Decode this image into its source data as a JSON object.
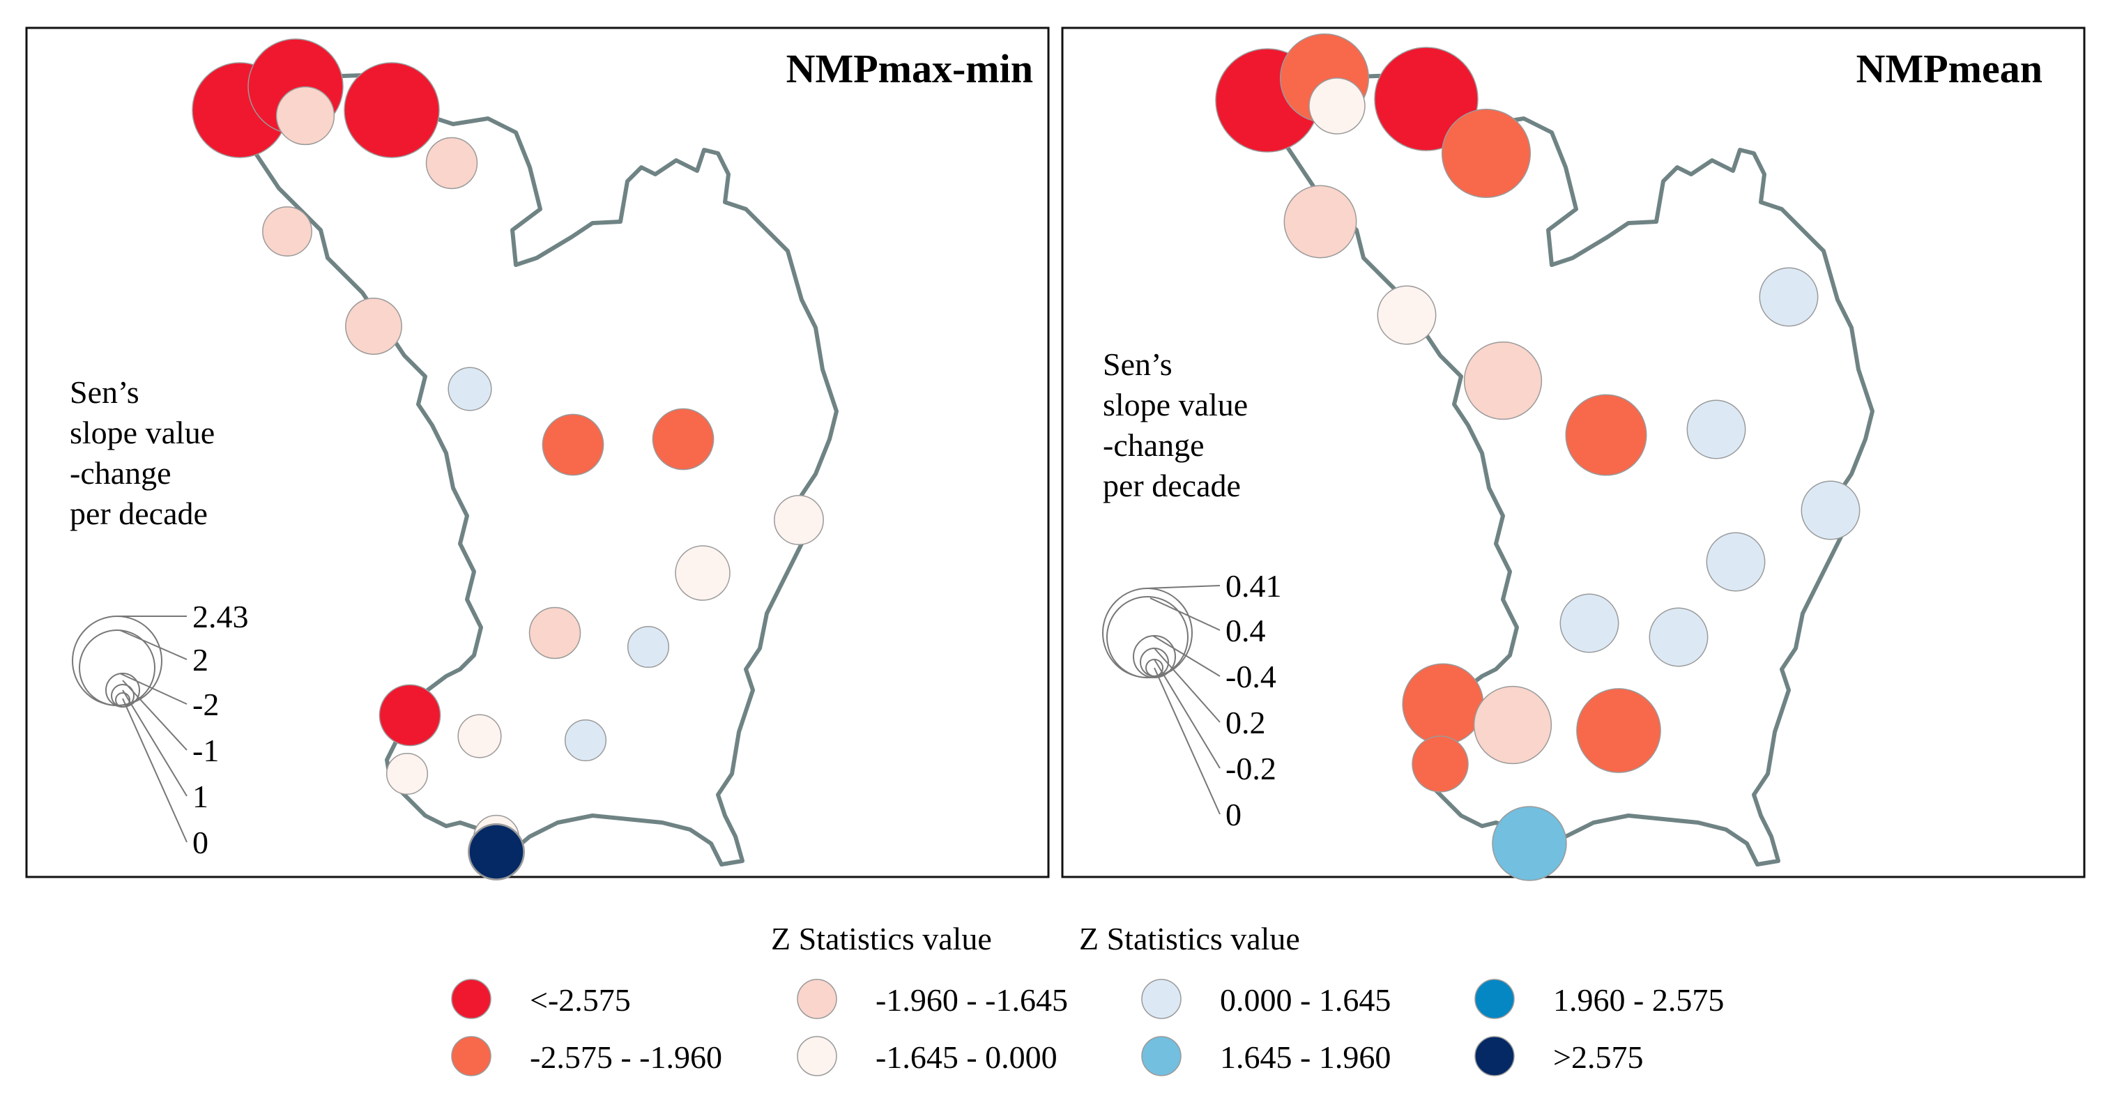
{
  "panels": [
    {
      "title": "NMPmax-min",
      "legend_title_lines": [
        "Sen’s",
        "slope value",
        "-change",
        "per decade"
      ],
      "size_legend_labels": [
        "2.43",
        "2",
        "-2",
        "-1",
        "1",
        "0"
      ],
      "stations": [
        {
          "slope": 2.43,
          "z_class": 0
        },
        {
          "slope": 2.43,
          "z_class": 0
        },
        {
          "slope": 2.43,
          "z_class": 0
        },
        {
          "slope": 0.9,
          "z_class": 2
        },
        {
          "slope": 0.7,
          "z_class": 2
        },
        {
          "slope": 0.65,
          "z_class": 2
        },
        {
          "slope": 0.85,
          "z_class": 2
        },
        {
          "slope": 0.5,
          "z_class": 4
        },
        {
          "slope": 1.0,
          "z_class": 1
        },
        {
          "slope": 1.0,
          "z_class": 1
        },
        {
          "slope": 0.65,
          "z_class": 3
        },
        {
          "slope": 0.8,
          "z_class": 3
        },
        {
          "slope": 0.7,
          "z_class": 2
        },
        {
          "slope": 0.45,
          "z_class": 4
        },
        {
          "slope": 1.0,
          "z_class": 0
        },
        {
          "slope": 0.5,
          "z_class": 3
        },
        {
          "slope": 0.45,
          "z_class": 4
        },
        {
          "slope": 0.45,
          "z_class": 3
        },
        {
          "slope": 0.55,
          "z_class": 3
        },
        {
          "slope": 0.85,
          "z_class": 4
        },
        {
          "slope": 0.8,
          "z_class": 7
        }
      ]
    },
    {
      "title": "NMPmean",
      "legend_title_lines": [
        "Sen’s",
        "slope value",
        "-change",
        "per decade"
      ],
      "size_legend_labels": [
        "0.41",
        "0.4",
        "-0.4",
        "0.2",
        "-0.2",
        "0"
      ],
      "stations": [
        {
          "slope": 0.41,
          "z_class": 0
        },
        {
          "slope": 0.3,
          "z_class": 1
        },
        {
          "slope": 0.12,
          "z_class": 3
        },
        {
          "slope": 0.41,
          "z_class": 0
        },
        {
          "slope": 0.3,
          "z_class": 1
        },
        {
          "slope": 0.2,
          "z_class": 2
        },
        {
          "slope": 0.13,
          "z_class": 3
        },
        {
          "slope": 0.13,
          "z_class": 4
        },
        {
          "slope": 0.23,
          "z_class": 2
        },
        {
          "slope": 0.25,
          "z_class": 1
        },
        {
          "slope": 0.13,
          "z_class": 4
        },
        {
          "slope": 0.13,
          "z_class": 4
        },
        {
          "slope": 0.13,
          "z_class": 4
        },
        {
          "slope": 0.13,
          "z_class": 4
        },
        {
          "slope": 0.13,
          "z_class": 4
        },
        {
          "slope": 0.25,
          "z_class": 1
        },
        {
          "slope": 0.23,
          "z_class": 2
        },
        {
          "slope": 0.27,
          "z_class": 1
        },
        {
          "slope": 0.12,
          "z_class": 1
        },
        {
          "slope": 0.21,
          "z_class": 5
        }
      ]
    }
  ],
  "legend": {
    "title": "Z Statistics value",
    "title_repeat": "Z Statistics value",
    "classes": [
      {
        "label": "<-2.575",
        "color": "#f0182f"
      },
      {
        "label": "-2.575 - -1.960",
        "color": "#f8684b"
      },
      {
        "label": "-1.960 - -1.645",
        "color": "#fad5cb"
      },
      {
        "label": "-1.645 - 0.000",
        "color": "#fdf3ef"
      },
      {
        "label": "0.000 - 1.645",
        "color": "#dce9f5"
      },
      {
        "label": "1.645 - 1.960",
        "color": "#72bfdf"
      },
      {
        "label": "1.960 - 2.575",
        "color": "#0587c4"
      },
      {
        "label": ">2.575",
        "color": "#042965"
      }
    ]
  },
  "colors": {
    "boundary": "#6f8384",
    "frame": "#111111",
    "circle_outline": "#9a9a9a"
  }
}
